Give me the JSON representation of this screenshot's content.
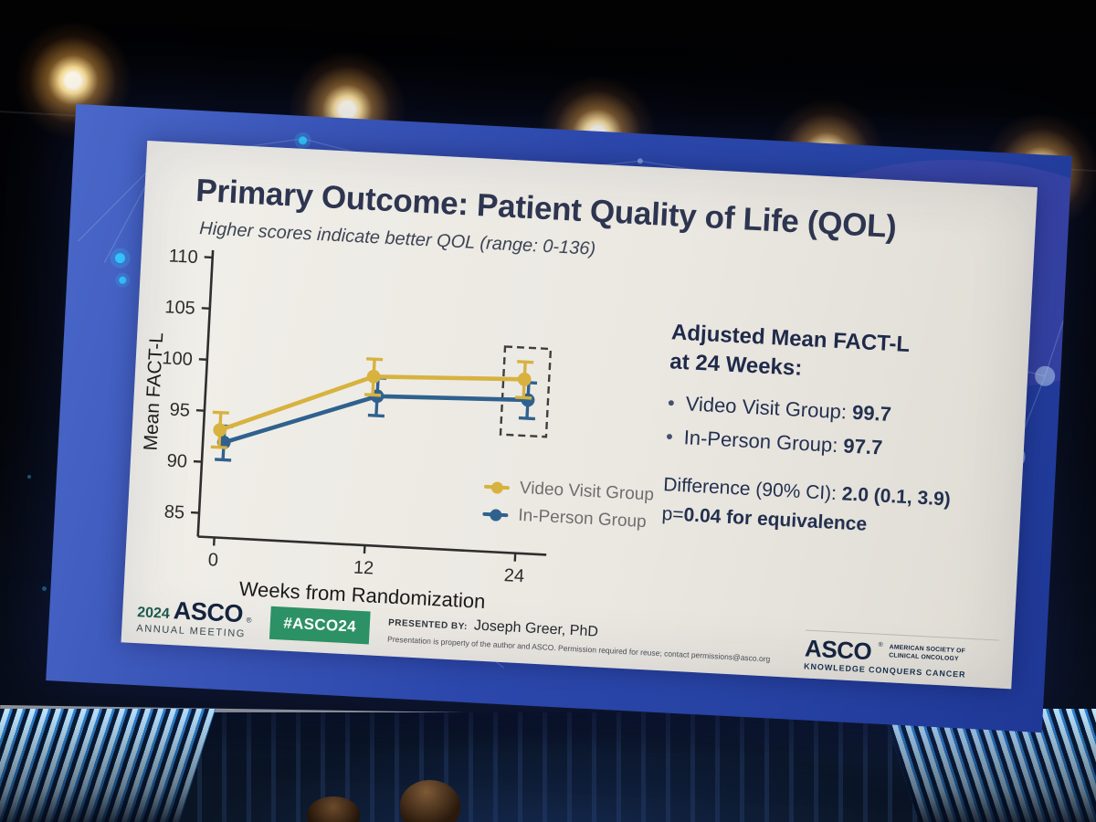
{
  "slide": {
    "title": "Primary Outcome: Patient Quality of Life (QOL)",
    "subtitle": "Higher scores indicate better QOL (range: 0-136)"
  },
  "chart_data": {
    "type": "line",
    "x": [
      0,
      12,
      24
    ],
    "xlabel": "Weeks from Randomization",
    "ylabel": "Mean FACT-L",
    "ylim": [
      85,
      110
    ],
    "yticks": [
      85,
      90,
      95,
      100,
      105,
      110
    ],
    "grid": false,
    "legend_position": "inside-bottom-right",
    "series": [
      {
        "name": "Video Visit Group",
        "color": "#d7b23f",
        "x_offset": 0,
        "values": [
          93.2,
          99.2,
          99.7
        ],
        "ci_low": [
          91.5,
          97.4,
          97.9
        ],
        "ci_high": [
          94.9,
          100.9,
          101.4
        ]
      },
      {
        "name": "In-Person Group",
        "color": "#2f618e",
        "x_offset": 5,
        "values": [
          92.0,
          97.3,
          97.7
        ],
        "ci_low": [
          90.3,
          95.4,
          95.9
        ],
        "ci_high": [
          93.6,
          99.1,
          99.4
        ]
      }
    ],
    "highlight_box": {
      "week": 24,
      "v_low": 94.2,
      "v_high": 102.8
    }
  },
  "right_panel": {
    "heading_line1": "Adjusted Mean FACT-L",
    "heading_line2": "at 24 Weeks:",
    "bullet": "•",
    "bullets": [
      {
        "label": "Video Visit Group:",
        "value": "99.7"
      },
      {
        "label": "In-Person Group:",
        "value": "97.7"
      }
    ],
    "difference_label": "Difference (90% CI):",
    "difference_value": "2.0 (0.1, 3.9)",
    "p_label": "p=",
    "p_value": "0.04",
    "p_suffix": " for equivalence"
  },
  "footer": {
    "logo_year": "2024",
    "logo_org": "ASCO",
    "logo_reg": "®",
    "logo_sub": "ANNUAL MEETING",
    "hashtag": "#ASCO24",
    "presented_label": "PRESENTED BY:",
    "presenter": "Joseph Greer, PhD",
    "disclaimer": "Presentation is property of the author and ASCO. Permission required for reuse; contact permissions@asco.org"
  },
  "brand": {
    "org": "ASCO",
    "reg": "®",
    "line1": "AMERICAN SOCIETY OF",
    "line2": "CLINICAL ONCOLOGY",
    "tagline": "KNOWLEDGE CONQUERS CANCER"
  },
  "colors": {
    "accent_gold": "#d7b23f",
    "accent_blue": "#2f618e",
    "badge_green": "#2c9164",
    "screen_blue": "#2c47ab",
    "title_navy": "#2d3550"
  }
}
